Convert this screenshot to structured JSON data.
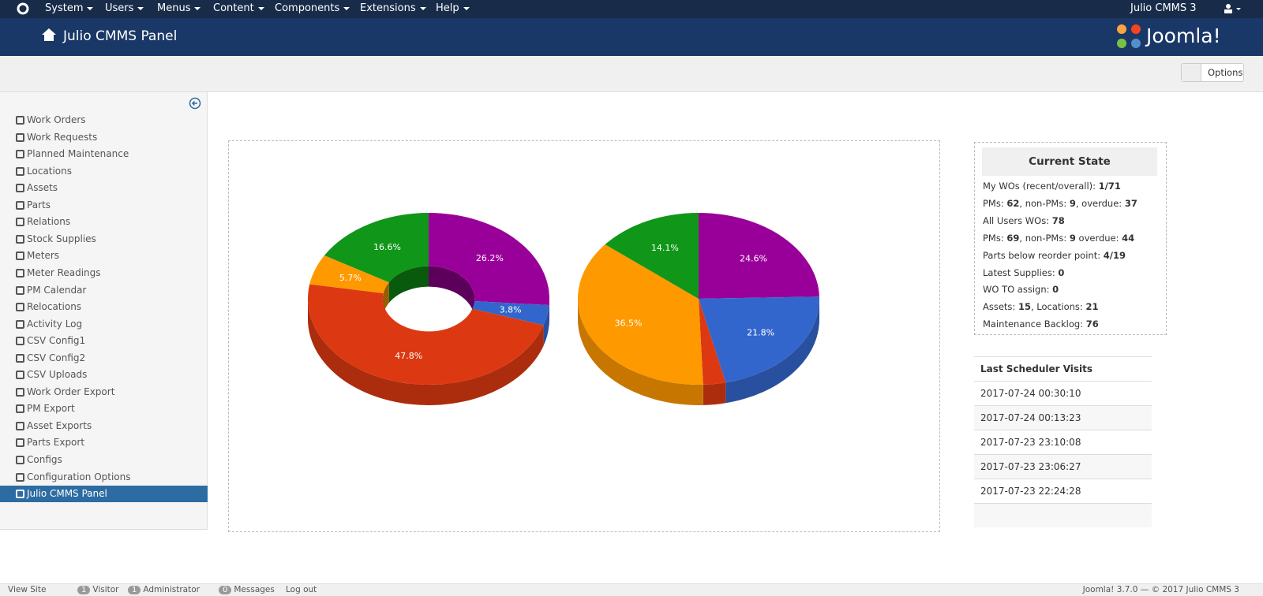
{
  "top_nav": {
    "items": [
      "System",
      "Users",
      "Menus",
      "Content",
      "Components",
      "Extensions",
      "Help"
    ],
    "site": "Julio CMMS 3"
  },
  "header": {
    "title": "Julio CMMS Panel",
    "brand": "Joomla!"
  },
  "toolbar": {
    "options": "Options"
  },
  "sidebar": {
    "items": [
      "Work Orders",
      "Work Requests",
      "Planned Maintenance",
      "Locations",
      "Assets",
      "Parts",
      "Relations",
      "Stock Supplies",
      "Meters",
      "Meter Readings",
      "PM Calendar",
      "Relocations",
      "Activity Log",
      "CSV Config1",
      "CSV Config2",
      "CSV Uploads",
      "Work Order Export",
      "PM Export",
      "Asset Exports",
      "Parts Export",
      "Configs",
      "Configuration Options",
      "Julio CMMS Panel"
    ],
    "active": 22
  },
  "chart_data": [
    {
      "type": "donut",
      "values": [
        26.2,
        3.8,
        47.8,
        5.7,
        16.6
      ],
      "value_labels": [
        "26.2%",
        "3.8%",
        "47.8%",
        "5.7%",
        "16.6%"
      ],
      "colors": [
        "#990099",
        "#3366cc",
        "#dc3912",
        "#ff9900",
        "#109618"
      ]
    },
    {
      "type": "pie",
      "values": [
        24.6,
        21.8,
        3.0,
        36.5,
        14.1
      ],
      "value_labels": [
        "24.6%",
        "21.8%",
        null,
        "36.5%",
        "14.1%"
      ],
      "colors": [
        "#990099",
        "#3366cc",
        "#dc3912",
        "#ff9900",
        "#109618"
      ]
    }
  ],
  "current_state": {
    "title": "Current State",
    "rows": [
      [
        "My WOs (recent/overall): ",
        "1/71"
      ],
      [
        "PMs: ",
        "62",
        ", non-PMs: ",
        "9",
        ", overdue: ",
        "37"
      ],
      [
        "All Users WOs: ",
        "78"
      ],
      [
        "PMs: ",
        "69",
        ", non-PMs: ",
        "9",
        " overdue: ",
        "44"
      ],
      [
        "Parts below reorder point: ",
        "4/19"
      ],
      [
        "Latest Supplies: ",
        "0"
      ],
      [
        "WO TO assign: ",
        "0"
      ],
      [
        "Assets: ",
        "15",
        ", Locations: ",
        "21"
      ],
      [
        "Maintenance Backlog: ",
        "76"
      ]
    ]
  },
  "scheduler": {
    "title": "Last Scheduler Visits",
    "rows": [
      "2017-07-24 00:30:10",
      "2017-07-24 00:13:23",
      "2017-07-23 23:10:08",
      "2017-07-23 23:06:27",
      "2017-07-23 22:24:28"
    ]
  },
  "footer": {
    "items": [
      {
        "label": "View Site"
      },
      {
        "count": 1,
        "label": "Visitor"
      },
      {
        "count": 1,
        "label": "Administrator"
      },
      {
        "count": 0,
        "label": "Messages"
      },
      {
        "label": "Log out"
      }
    ],
    "version": "Joomla! 3.7.0",
    "copyright": "© 2017 Julio CMMS 3"
  }
}
